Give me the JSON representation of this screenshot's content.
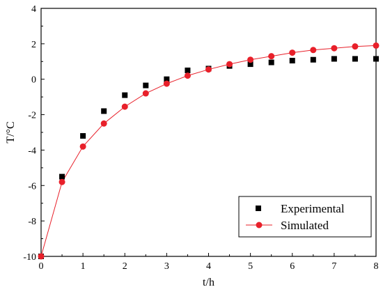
{
  "chart_data": {
    "type": "scatter",
    "xlabel": "t/h",
    "ylabel": "T/°C",
    "xlim": [
      0,
      8
    ],
    "ylim": [
      -10,
      4
    ],
    "x_ticks": [
      0,
      1,
      2,
      3,
      4,
      5,
      6,
      7,
      8
    ],
    "y_ticks": [
      -10,
      -8,
      -6,
      -4,
      -2,
      0,
      2,
      4
    ],
    "grid": false,
    "legend_position": "bottom-right",
    "series": [
      {
        "name": "Experimental",
        "marker": "square",
        "line": false,
        "color": "#000000",
        "x": [
          0,
          0.5,
          1,
          1.5,
          2,
          2.5,
          3,
          3.5,
          4,
          4.5,
          5,
          5.5,
          6,
          6.5,
          7,
          7.5,
          8
        ],
        "y": [
          -10.0,
          -5.5,
          -3.2,
          -1.8,
          -0.9,
          -0.35,
          0.0,
          0.5,
          0.6,
          0.75,
          0.85,
          0.95,
          1.05,
          1.1,
          1.15,
          1.15,
          1.15
        ]
      },
      {
        "name": "Simulated",
        "marker": "circle",
        "line": true,
        "color": "#e8202a",
        "x": [
          0,
          0.5,
          1,
          1.5,
          2,
          2.5,
          3,
          3.5,
          4,
          4.5,
          5,
          5.5,
          6,
          6.5,
          7,
          7.5,
          8
        ],
        "y": [
          -10.0,
          -5.8,
          -3.8,
          -2.5,
          -1.55,
          -0.8,
          -0.25,
          0.2,
          0.55,
          0.85,
          1.1,
          1.3,
          1.5,
          1.65,
          1.75,
          1.85,
          1.9
        ]
      }
    ]
  }
}
